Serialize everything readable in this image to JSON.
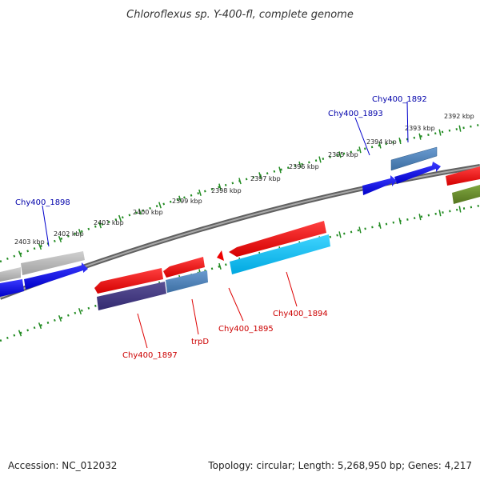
{
  "title": "Chloroflexus sp. Y-400-fl, complete genome",
  "footer": {
    "accession": "Accession: NC_012032",
    "summary": "Topology: circular; Length: 5,268,950 bp; Genes: 4,217"
  },
  "scale_labels": [
    "2392 kbp",
    "2393 kbp",
    "2394 kbp",
    "2395 kbp",
    "2396 kbp",
    "2397 kbp",
    "2398 kbp",
    "2399 kbp",
    "2400 kbp",
    "2401 kbp",
    "2402 kbp",
    "2403 kbp"
  ],
  "gene_labels": [
    {
      "text": "Chy400_1892",
      "color": "#0000aa"
    },
    {
      "text": "Chy400_1893",
      "color": "#0000aa"
    },
    {
      "text": "Chy400_1898",
      "color": "#0000aa"
    },
    {
      "text": "Chy400_1894",
      "color": "#cc0000"
    },
    {
      "text": "Chy400_1895",
      "color": "#cc0000"
    },
    {
      "text": "trpD",
      "color": "#cc0000"
    },
    {
      "text": "Chy400_1897",
      "color": "#cc0000"
    }
  ],
  "colors": {
    "backbone": "#808080",
    "ticks": "#228b22",
    "cds_forward": "#0000ee",
    "cds_reverse": "#ee0000",
    "cds_forward_light": "#4a7fb5",
    "cds_reverse_light": "#00bfff",
    "purple": "#483d8b",
    "gray": "#b0b0b0",
    "olive": "#6b8e23"
  }
}
